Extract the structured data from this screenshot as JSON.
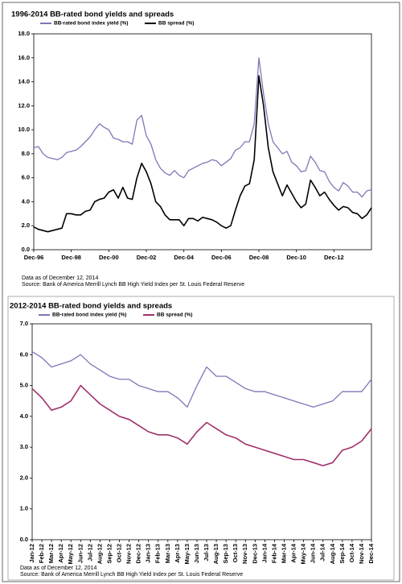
{
  "chart_data": [
    {
      "type": "line",
      "title": "1996-2014 BB-rated bond yields and spreads",
      "categories": [
        "Dec-96",
        null,
        null,
        null,
        null,
        null,
        null,
        null,
        "Dec-98",
        null,
        null,
        null,
        null,
        null,
        null,
        null,
        "Dec-00",
        null,
        null,
        null,
        null,
        null,
        null,
        null,
        "Dec-02",
        null,
        null,
        null,
        null,
        null,
        null,
        null,
        "Dec-04",
        null,
        null,
        null,
        null,
        null,
        null,
        null,
        "Dec-06",
        null,
        null,
        null,
        null,
        null,
        null,
        null,
        "Dec-08",
        null,
        null,
        null,
        null,
        null,
        null,
        null,
        "Dec-10",
        null,
        null,
        null,
        null,
        null,
        null,
        null,
        "Dec-12",
        null,
        null,
        null,
        null,
        null,
        null,
        null,
        null
      ],
      "series": [
        {
          "name": "BB-rated bond index yield (%)",
          "color": "#7b78b8",
          "values": [
            8.5,
            8.6,
            8.0,
            7.7,
            7.6,
            7.5,
            7.7,
            8.1,
            8.2,
            8.3,
            8.6,
            9.0,
            9.4,
            10.0,
            10.5,
            10.2,
            10.0,
            9.3,
            9.2,
            9.0,
            9.0,
            8.8,
            10.8,
            11.2,
            9.5,
            8.8,
            7.5,
            6.8,
            6.4,
            6.2,
            6.6,
            6.2,
            6.0,
            6.6,
            6.8,
            7.0,
            7.2,
            7.3,
            7.5,
            7.4,
            7.0,
            7.3,
            7.6,
            8.3,
            8.5,
            9.0,
            9.0,
            10.5,
            16.0,
            13.0,
            10.5,
            9.0,
            8.5,
            8.0,
            8.2,
            7.3,
            7.0,
            6.5,
            6.6,
            7.8,
            7.3,
            6.6,
            6.5,
            5.7,
            5.2,
            4.9,
            5.6,
            5.3,
            4.8,
            4.8,
            4.4,
            4.9,
            5.0
          ]
        },
        {
          "name": "BB spread (%)",
          "color": "#000000",
          "values": [
            1.9,
            1.7,
            1.6,
            1.5,
            1.6,
            1.7,
            1.8,
            3.0,
            3.0,
            2.9,
            2.9,
            3.2,
            3.3,
            4.0,
            4.2,
            4.3,
            4.8,
            5.0,
            4.3,
            5.2,
            4.3,
            4.2,
            6.0,
            7.2,
            6.5,
            5.5,
            4.0,
            3.6,
            2.9,
            2.5,
            2.5,
            2.5,
            2.0,
            2.6,
            2.6,
            2.4,
            2.7,
            2.6,
            2.5,
            2.3,
            2.0,
            1.8,
            2.0,
            3.3,
            4.5,
            5.3,
            5.5,
            7.5,
            14.5,
            12.0,
            8.5,
            6.5,
            5.5,
            4.5,
            5.4,
            4.7,
            4.0,
            3.5,
            3.8,
            5.8,
            5.2,
            4.5,
            4.8,
            4.2,
            3.7,
            3.3,
            3.6,
            3.5,
            3.1,
            3.0,
            2.6,
            2.9,
            3.5
          ]
        }
      ],
      "ylim": [
        0,
        18
      ],
      "yticks": [
        {
          "value": 0,
          "label": "0.0"
        },
        {
          "value": 2,
          "label": "2.0"
        },
        {
          "value": 4,
          "label": "4.0"
        },
        {
          "value": 6,
          "label": "6.0"
        },
        {
          "value": 8,
          "label": "8.0"
        },
        {
          "value": 10,
          "label": "10.0"
        },
        {
          "value": 12,
          "label": "12.0"
        },
        {
          "value": 14,
          "label": "14.0"
        },
        {
          "value": 16,
          "label": "16.0"
        },
        {
          "value": 18,
          "label": "18.0"
        }
      ],
      "legend": "top-left",
      "notes": [
        "Data as of December 12, 2014",
        "Source: Bank of America Merrill Lynch BB High Yield Index per St. Louis Federal Reserve"
      ]
    },
    {
      "type": "line",
      "title": "2012-2014 BB-rated bond yields and spreads",
      "categories": [
        "Jan-12",
        "Feb-12",
        "Mar-12",
        "Apr-12",
        "May-12",
        "Jun-12",
        "Jul-12",
        "Aug-12",
        "Sep-12",
        "Oct-12",
        "Nov-12",
        "Dec-12",
        "Jan-13",
        "Feb-13",
        "Mar-13",
        "Apr-13",
        "May-13",
        "Jun-13",
        "Jul-13",
        "Aug-13",
        "Sep-13",
        "Oct-13",
        "Nov-13",
        "Dec-13",
        "Jan-14",
        "Feb-14",
        "Mar-14",
        "Apr-14",
        "May-14",
        "Jun-14",
        "Jul-14",
        "Aug-14",
        "Sep-14",
        "Oct-14",
        "Nov-14",
        "Dec-14"
      ],
      "series": [
        {
          "name": "BB-rated bond index yield (%)",
          "color": "#7b78b8",
          "values": [
            6.1,
            5.9,
            5.6,
            5.7,
            5.8,
            6.0,
            5.7,
            5.5,
            5.3,
            5.2,
            5.2,
            5.0,
            4.9,
            4.8,
            4.8,
            4.6,
            4.3,
            5.0,
            5.6,
            5.3,
            5.3,
            5.1,
            4.9,
            4.8,
            4.8,
            4.7,
            4.6,
            4.5,
            4.4,
            4.3,
            4.4,
            4.5,
            4.8,
            4.8,
            4.8,
            5.2
          ]
        },
        {
          "name": "BB spread (%)",
          "color": "#a0306b",
          "values": [
            4.9,
            4.6,
            4.2,
            4.3,
            4.5,
            5.0,
            4.7,
            4.4,
            4.2,
            4.0,
            3.9,
            3.7,
            3.5,
            3.4,
            3.4,
            3.3,
            3.1,
            3.5,
            3.8,
            3.6,
            3.4,
            3.3,
            3.1,
            3.0,
            2.9,
            2.8,
            2.7,
            2.6,
            2.6,
            2.5,
            2.4,
            2.5,
            2.9,
            3.0,
            3.2,
            3.6
          ]
        }
      ],
      "ylim": [
        0,
        7
      ],
      "yticks": [
        {
          "value": 0,
          "label": "0.0"
        },
        {
          "value": 1,
          "label": "1.0"
        },
        {
          "value": 2,
          "label": "2.0"
        },
        {
          "value": 3,
          "label": "3.0"
        },
        {
          "value": 4,
          "label": "4.0"
        },
        {
          "value": 5,
          "label": "5.0"
        },
        {
          "value": 6,
          "label": "6.0"
        },
        {
          "value": 7,
          "label": "7.0"
        }
      ],
      "legend": "top-left",
      "notes": [
        "Data as of December 12, 2014",
        "Source: Bank of America Merrill Lynch BB High Yield Index per St. Louis Federal Reserve"
      ]
    }
  ]
}
